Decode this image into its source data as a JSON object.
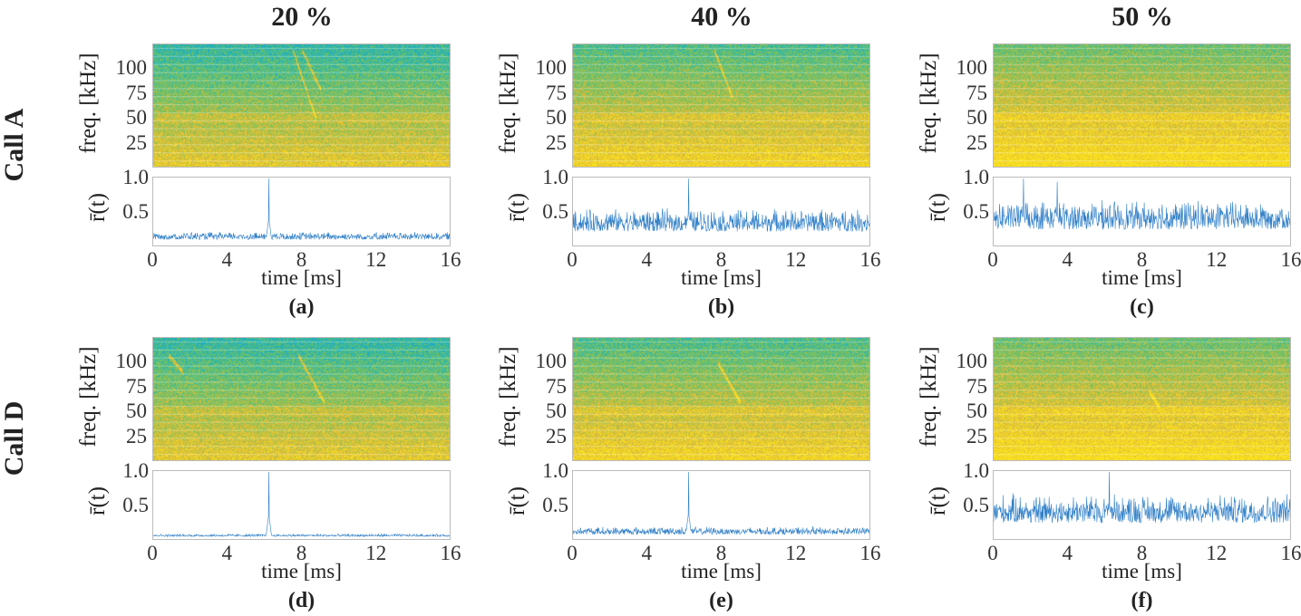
{
  "columns": [
    "20 %",
    "40 %",
    "50 %"
  ],
  "rows": [
    "Call A",
    "Call D"
  ],
  "chart_data": {
    "type": "spectrogram+line",
    "spectrogram": {
      "xlabel": "time [ms]",
      "ylabel": "freq. [kHz]",
      "yticks": [
        "25",
        "50",
        "75",
        "100"
      ],
      "ytick_values": [
        25,
        50,
        75,
        100
      ],
      "ylim": [
        0,
        125
      ],
      "xlim": [
        0,
        16
      ]
    },
    "line": {
      "xlabel": "time [ms]",
      "ylabel": "r̄(t)",
      "yticks": [
        "0.5",
        "1.0"
      ],
      "ytick_values": [
        0.5,
        1.0
      ],
      "ylim": [
        0,
        1
      ],
      "xlim": [
        0,
        16
      ],
      "xticks": [
        "0",
        "4",
        "8",
        "12",
        "16"
      ],
      "xtick_values": [
        0,
        4,
        8,
        12,
        16
      ]
    },
    "panels": [
      {
        "caption": "(a)",
        "snr": "20 %",
        "call": "A",
        "noise_level": 0.1,
        "noise_amp": 0.12,
        "peaks": [
          {
            "t": 6.2,
            "r": 1.0
          }
        ],
        "chirps": [
          {
            "t0": 7.5,
            "t1": 8.8,
            "f0": 120,
            "f1": 48
          },
          {
            "t0": 8.0,
            "t1": 9.0,
            "f0": 120,
            "f1": 80
          }
        ],
        "noise_shift": 0.0
      },
      {
        "caption": "(b)",
        "snr": "40 %",
        "call": "A",
        "noise_level": 0.22,
        "noise_amp": 0.35,
        "peaks": [
          {
            "t": 6.2,
            "r": 1.0
          }
        ],
        "chirps": [
          {
            "t0": 7.6,
            "t1": 8.6,
            "f0": 120,
            "f1": 70
          }
        ],
        "noise_shift": 0.08
      },
      {
        "caption": "(c)",
        "snr": "50 %",
        "call": "A",
        "noise_level": 0.25,
        "noise_amp": 0.45,
        "peaks": [
          {
            "t": 1.6,
            "r": 1.0
          },
          {
            "t": 3.4,
            "r": 0.95
          }
        ],
        "chirps": [],
        "noise_shift": 0.16
      },
      {
        "caption": "(d)",
        "snr": "20 %",
        "call": "D",
        "noise_level": 0.05,
        "noise_amp": 0.04,
        "peaks": [
          {
            "t": 6.2,
            "r": 1.0
          }
        ],
        "chirps": [
          {
            "t0": 7.8,
            "t1": 9.2,
            "f0": 108,
            "f1": 60
          },
          {
            "t0": 0.8,
            "t1": 1.6,
            "f0": 108,
            "f1": 90
          }
        ],
        "noise_shift": 0.0
      },
      {
        "caption": "(e)",
        "snr": "40 %",
        "call": "D",
        "noise_level": 0.08,
        "noise_amp": 0.12,
        "peaks": [
          {
            "t": 6.2,
            "r": 1.0
          }
        ],
        "chirps": [
          {
            "t0": 7.8,
            "t1": 9.0,
            "f0": 100,
            "f1": 60
          }
        ],
        "noise_shift": 0.08
      },
      {
        "caption": "(f)",
        "snr": "50 %",
        "call": "D",
        "noise_level": 0.25,
        "noise_amp": 0.45,
        "peaks": [
          {
            "t": 6.2,
            "r": 1.0
          }
        ],
        "chirps": [
          {
            "t0": 8.4,
            "t1": 8.9,
            "f0": 70,
            "f1": 55
          }
        ],
        "noise_shift": 0.16
      }
    ]
  }
}
